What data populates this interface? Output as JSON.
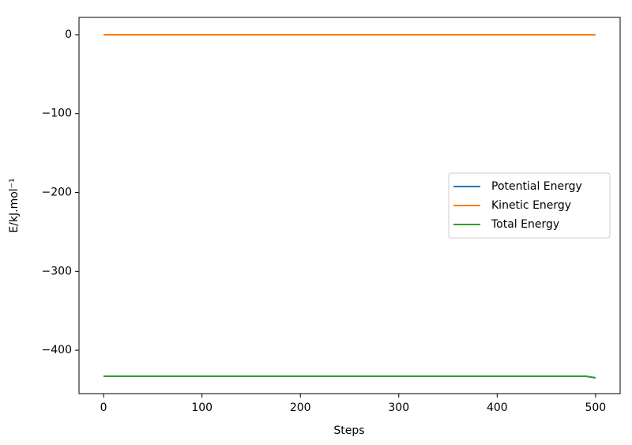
{
  "chart_data": {
    "type": "line",
    "xlabel": "Steps",
    "ylabel": "E/kJ.mol⁻¹",
    "x": [
      0,
      100,
      200,
      300,
      400,
      490,
      500
    ],
    "series": [
      {
        "name": "Potential Energy",
        "color": "#1f77b4",
        "values": [
          -433,
          -433,
          -433,
          -433,
          -433,
          -433,
          -435
        ]
      },
      {
        "name": "Kinetic Energy",
        "color": "#ff7f0e",
        "values": [
          0,
          0,
          0,
          0,
          0,
          0,
          0
        ]
      },
      {
        "name": "Total Energy",
        "color": "#2ca02c",
        "values": [
          -433,
          -433,
          -433,
          -433,
          -433,
          -433,
          -435
        ]
      }
    ],
    "xlim": [
      -25,
      525
    ],
    "ylim": [
      -455,
      22
    ],
    "xticks": [
      0,
      100,
      200,
      300,
      400,
      500
    ],
    "yticks": [
      {
        "value": -400,
        "label": "−400"
      },
      {
        "value": -300,
        "label": "−300"
      },
      {
        "value": -200,
        "label": "−200"
      },
      {
        "value": -100,
        "label": "−100"
      },
      0
    ],
    "legend": "center right",
    "grid": false
  }
}
